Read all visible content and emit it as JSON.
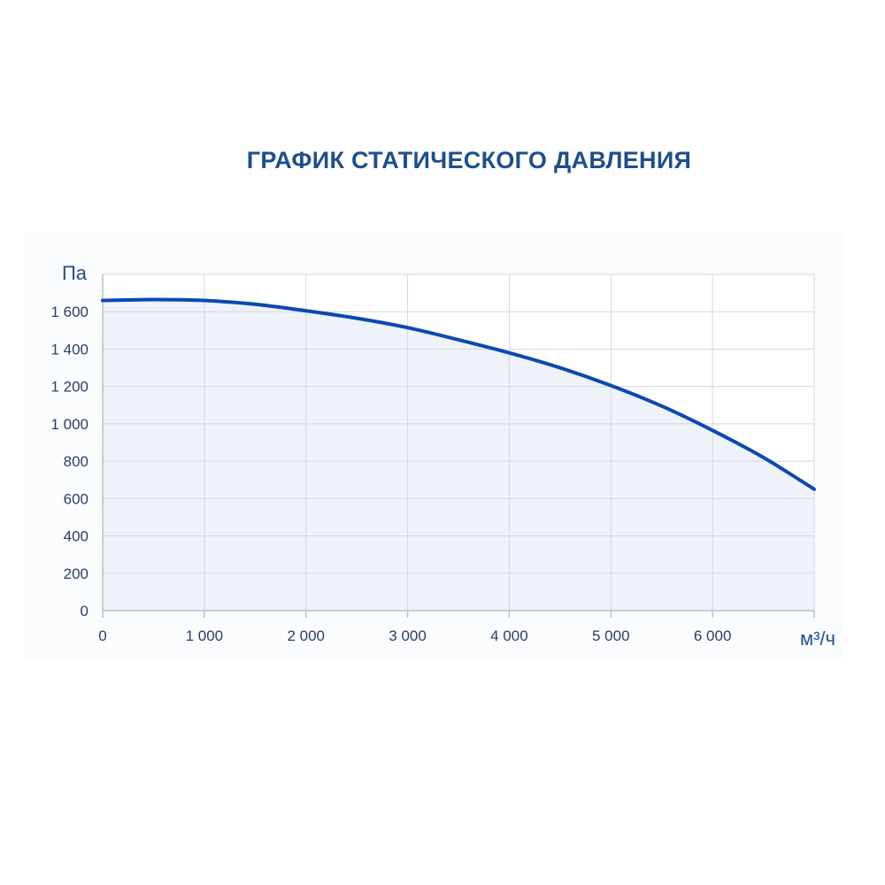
{
  "title": "ГРАФИК СТАТИЧЕСКОГО ДАВЛЕНИЯ",
  "colors": {
    "title": "#1e4e8c",
    "curve": "#0b49b0",
    "fill": "#eef2f9",
    "grid": "#d3d8e0",
    "axis": "#b9c0cb",
    "tick_text": "#2b3e63"
  },
  "chart_data": {
    "type": "area",
    "title": "ГРАФИК СТАТИЧЕСКОГО ДАВЛЕНИЯ",
    "ylabel": "Па",
    "xlabel": "м³/ч",
    "xlim": [
      0,
      7000
    ],
    "ylim": [
      0,
      1800
    ],
    "grid": true,
    "x_ticks": [
      0,
      1000,
      2000,
      3000,
      4000,
      5000,
      6000
    ],
    "x_tick_labels": [
      "0",
      "1 000",
      "2 000",
      "3 000",
      "4 000",
      "5 000",
      "6 000"
    ],
    "y_ticks": [
      0,
      200,
      400,
      600,
      800,
      1000,
      1200,
      1400,
      1600
    ],
    "y_tick_labels": [
      "0",
      "200",
      "400",
      "600",
      "800",
      "1 000",
      "1 200",
      "1 400",
      "1 600"
    ],
    "series": [
      {
        "x": [
          0,
          500,
          1000,
          1500,
          2000,
          2500,
          3000,
          3500,
          4000,
          4500,
          5000,
          5500,
          6000,
          6500,
          7000
        ],
        "values": [
          1660,
          1665,
          1660,
          1640,
          1605,
          1565,
          1515,
          1450,
          1380,
          1300,
          1205,
          1095,
          965,
          820,
          650
        ]
      }
    ]
  }
}
